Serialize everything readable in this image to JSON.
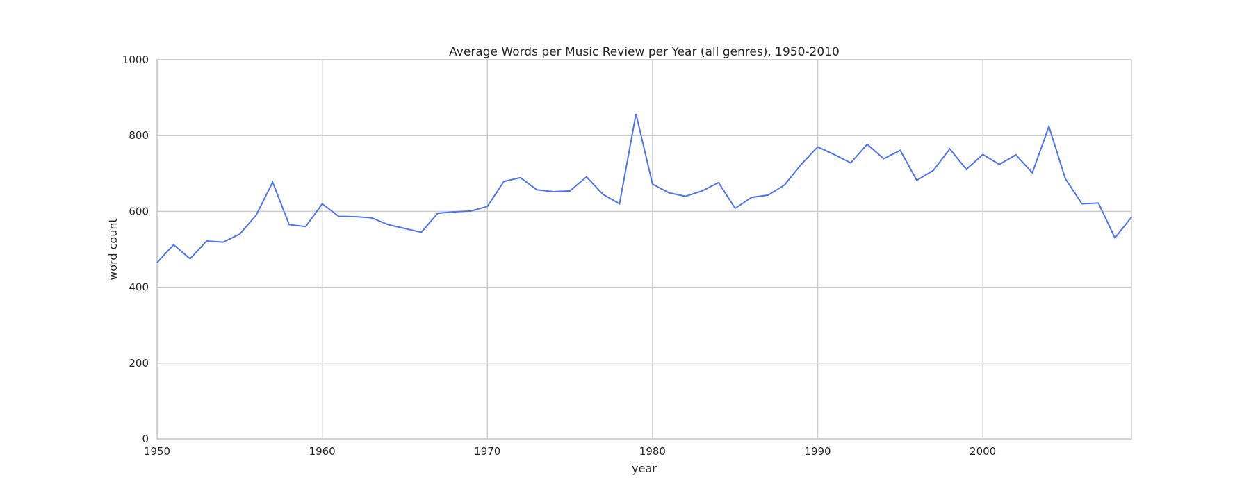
{
  "chart_data": {
    "type": "line",
    "title": "Average Words per Music Review per Year (all genres), 1950-2010",
    "xlabel": "year",
    "ylabel": "word count",
    "xlim": [
      1950,
      2009
    ],
    "ylim": [
      0,
      1000
    ],
    "xticks": [
      1950,
      1960,
      1970,
      1980,
      1990,
      2000
    ],
    "yticks": [
      0,
      200,
      400,
      600,
      800,
      1000
    ],
    "grid": true,
    "colors": {
      "line": "#4c72f5",
      "grid": "#cccccc",
      "background": "#ffffff"
    },
    "series": [
      {
        "x": [
          1950,
          1951,
          1952,
          1953,
          1954,
          1955,
          1956,
          1957,
          1958,
          1959,
          1960,
          1961,
          1962,
          1963,
          1964,
          1965,
          1966,
          1967,
          1968,
          1969,
          1970,
          1971,
          1972,
          1973,
          1974,
          1975,
          1976,
          1977,
          1978,
          1979,
          1980,
          1981,
          1982,
          1983,
          1984,
          1985,
          1986,
          1987,
          1988,
          1989,
          1990,
          1991,
          1992,
          1993,
          1994,
          1995,
          1996,
          1997,
          1998,
          1999,
          2000,
          2001,
          2002,
          2003,
          2004,
          2005,
          2006,
          2007,
          2008,
          2009
        ],
        "y": [
          465,
          512,
          475,
          522,
          519,
          540,
          590,
          677,
          565,
          560,
          620,
          587,
          586,
          583,
          565,
          555,
          545,
          595,
          599,
          601,
          613,
          679,
          689,
          657,
          652,
          654,
          691,
          645,
          620,
          857,
          672,
          649,
          640,
          654,
          676,
          608,
          637,
          643,
          670,
          724,
          770,
          750,
          728,
          777,
          739,
          761,
          682,
          708,
          765,
          711,
          750,
          724,
          749,
          702,
          824,
          686,
          620,
          622,
          530,
          585
        ]
      }
    ]
  }
}
